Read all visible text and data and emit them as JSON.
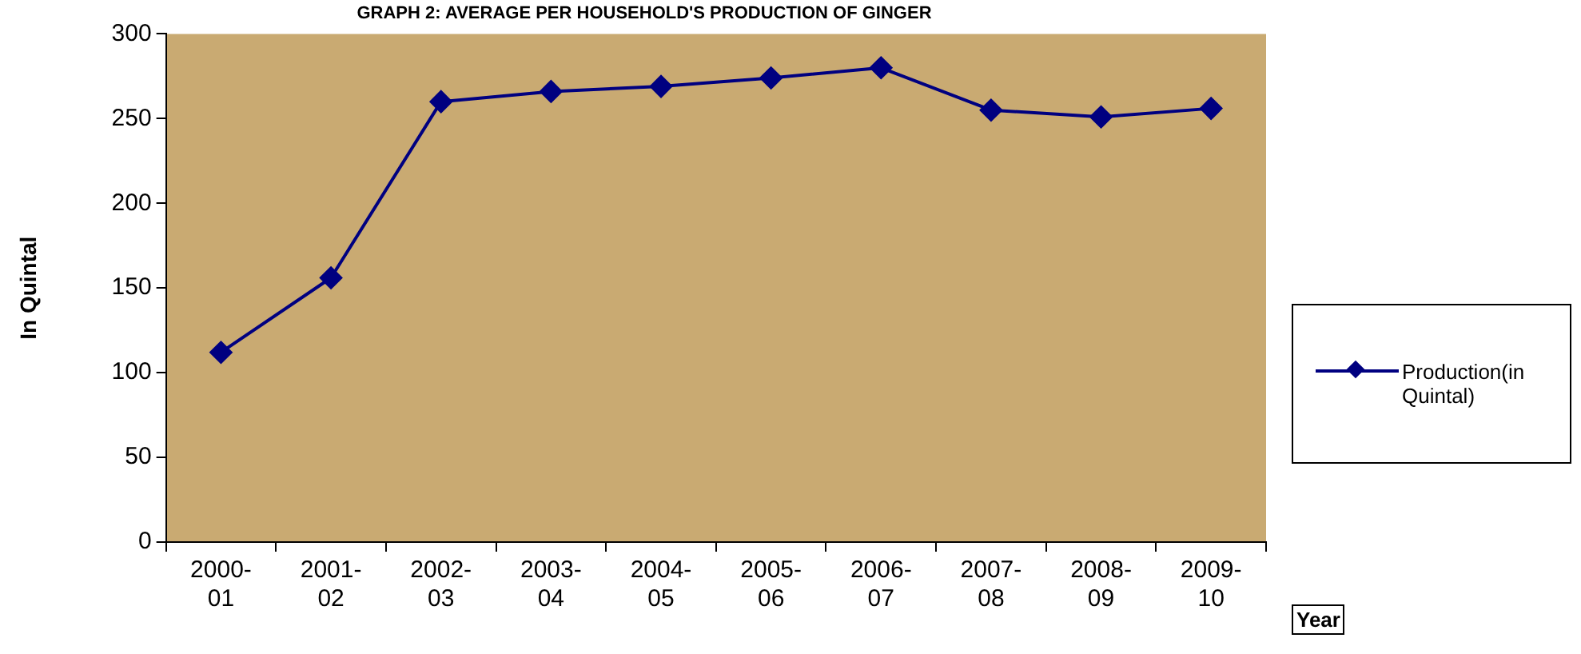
{
  "chart_data": {
    "type": "line",
    "title": "GRAPH 2: AVERAGE PER HOUSEHOLD'S PRODUCTION OF GINGER",
    "xlabel": "Year",
    "ylabel": "In Quintal",
    "categories": [
      "2000-01",
      "2001-02",
      "2002-03",
      "2003-04",
      "2004-05",
      "2005-06",
      "2006-07",
      "2007-08",
      "2008-09",
      "2009-10"
    ],
    "series": [
      {
        "name": "Production(in Quintal)",
        "color": "#000080",
        "values": [
          112,
          156,
          260,
          266,
          269,
          274,
          280,
          255,
          251,
          256
        ]
      }
    ],
    "ylim": [
      0,
      300
    ],
    "yticks": [
      0,
      50,
      100,
      150,
      200,
      250,
      300
    ],
    "legend": "right",
    "marker": "diamond"
  }
}
